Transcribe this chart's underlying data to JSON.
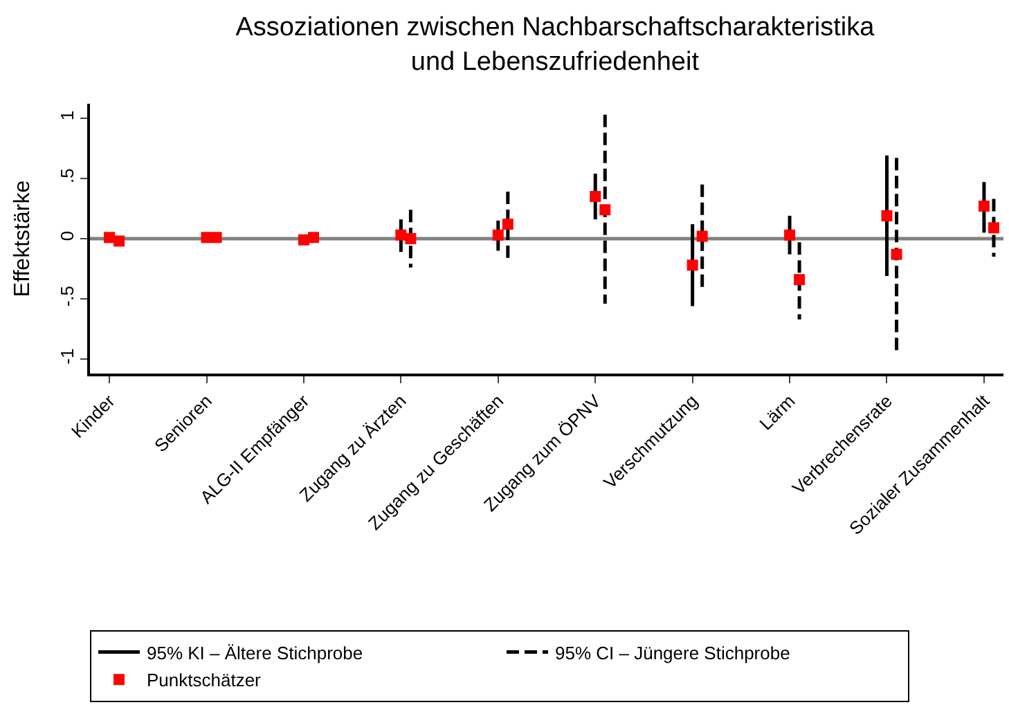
{
  "chart_data": {
    "type": "scatter",
    "title": "Assoziationen zwischen Nachbarschaftscharakteristika\nund Lebenszufriedenheit",
    "ylabel": "Effektstärke",
    "categories": [
      "Kinder",
      "Senioren",
      "ALG-II Empfänger",
      "Zugang zu Ärzten",
      "Zugang zu Geschäften",
      "Zugang zum ÖPNV",
      "Verschmutzung",
      "Lärm",
      "Verbrechensrate",
      "Sozialer Zusammenhalt"
    ],
    "series": [
      {
        "name": "Punktschätzer",
        "color": "#ff0000",
        "line_style": "solid",
        "values": [
          0.01,
          0.01,
          -0.01,
          0.03,
          0.03,
          0.35,
          -0.22,
          0.03,
          0.19,
          0.27
        ],
        "errors": [
          null,
          null,
          null,
          [
            -0.11,
            0.16
          ],
          [
            -0.1,
            0.15
          ],
          [
            0.16,
            0.54
          ],
          [
            -0.56,
            0.12
          ],
          [
            -0.13,
            0.19
          ],
          [
            -0.31,
            0.69
          ],
          [
            0.05,
            0.47
          ]
        ]
      },
      {
        "color": "#ff0000",
        "line_style": "dashed",
        "values": [
          -0.02,
          0.01,
          0.01,
          0.0,
          0.12,
          0.24,
          0.02,
          -0.34,
          -0.13,
          0.09
        ],
        "errors": [
          null,
          null,
          null,
          [
            -0.24,
            0.24
          ],
          [
            -0.16,
            0.39
          ],
          [
            -0.54,
            1.03
          ],
          [
            -0.42,
            0.45
          ],
          [
            -0.67,
            -0.03
          ],
          [
            -0.94,
            0.67
          ],
          [
            -0.15,
            0.33
          ]
        ]
      }
    ],
    "annotations": [
      "95% KI – Ältere Stichprobe",
      "95% CI – Jüngere Stichprobe"
    ],
    "ylim": [
      -1.12,
      1.12
    ],
    "yticks": [
      {
        "value": -1,
        "label": "-1"
      },
      {
        "value": -0.5,
        "label": "-.5"
      },
      0,
      {
        "value": 0.5,
        "label": ".5"
      },
      1
    ],
    "ref_lines": [
      {
        "axis": "y",
        "value": 0,
        "color": "#808080"
      }
    ],
    "marker": "square",
    "grid": false,
    "legend": "bottom"
  }
}
